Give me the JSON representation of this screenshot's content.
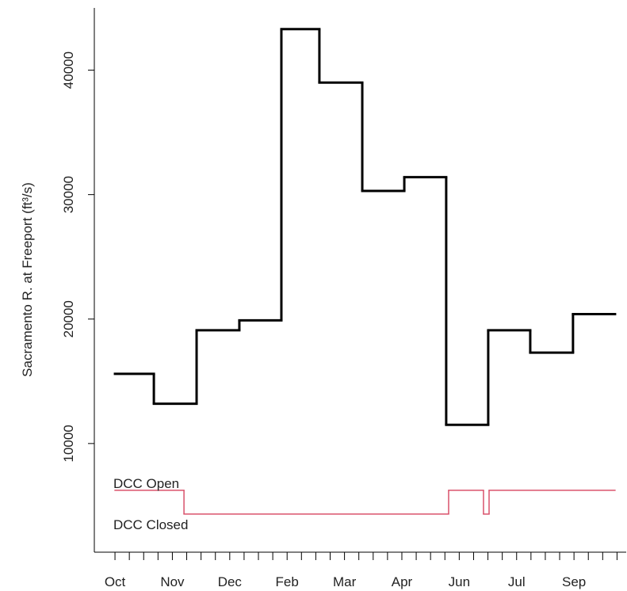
{
  "chart_data": {
    "type": "step",
    "y_label": "Sacramento R. at Freeport (ft³/s)",
    "annotations": [
      "DCC Open",
      "DCC Closed"
    ],
    "xlim": [
      -1.44,
      35.64
    ],
    "ylim": [
      1270,
      45000
    ],
    "yticks": [
      10000,
      20000,
      30000,
      40000
    ],
    "xticks": [
      {
        "value": 0,
        "label": "Oct"
      },
      {
        "value": 4,
        "label": "Nov"
      },
      {
        "value": 8,
        "label": "Dec"
      },
      {
        "value": 12,
        "label": "Feb"
      },
      {
        "value": 16,
        "label": "Mar"
      },
      {
        "value": 20,
        "label": "Apr"
      },
      {
        "value": 24,
        "label": "Jun"
      },
      {
        "value": 28,
        "label": "Jul"
      },
      {
        "value": 32,
        "label": "Sep"
      }
    ],
    "xticks_minor": [
      1,
      2,
      3,
      5,
      6,
      7,
      9,
      10,
      11,
      13,
      14,
      15,
      17,
      18,
      19,
      21,
      22,
      23,
      25,
      26,
      27,
      29,
      30,
      31,
      33,
      34,
      35
    ],
    "series": [
      {
        "color": "#000000",
        "bins": [
          0,
          2.71,
          5.69,
          8.67,
          11.6,
          14.25,
          17.24,
          20.17,
          23.09,
          26.02,
          28.95,
          31.93,
          34.86
        ],
        "values": [
          15600,
          13200,
          19100,
          19900,
          43300,
          39000,
          30300,
          31400,
          11500,
          19100,
          17300,
          20400
        ]
      },
      {
        "color": "#d9526b",
        "bins": [
          0,
          4.81,
          23.26,
          25.69,
          26.08,
          34.86
        ],
        "values": [
          6240,
          4330,
          6240,
          4330,
          6240
        ]
      }
    ]
  }
}
